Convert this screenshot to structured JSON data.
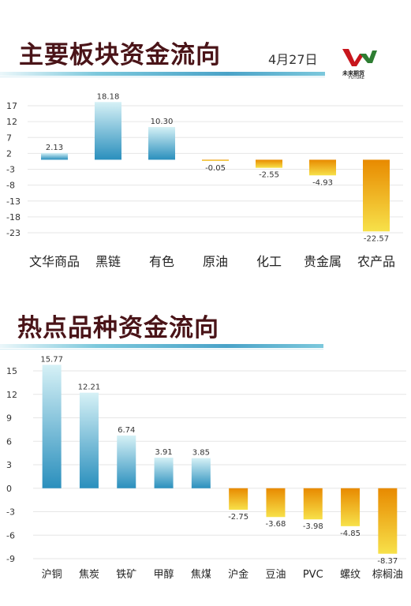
{
  "header1": {
    "title": "主要板块资金流向",
    "date": "4月27日"
  },
  "logo": {
    "name": "未来期货",
    "sub": "FUTURE"
  },
  "header2": {
    "title": "热点品种资金流向"
  },
  "colors": {
    "positive_top": "#d6f1f6",
    "positive_bottom": "#2a8fbd",
    "negative_top": "#e88a00",
    "negative_bottom": "#f7e14a",
    "title": "#4a1418",
    "grid": "#e6e6e6"
  },
  "chart_data": [
    {
      "type": "bar",
      "categories": [
        "文华商品",
        "黑链",
        "有色",
        "原油",
        "化工",
        "贵金属",
        "农产品"
      ],
      "values": [
        2.13,
        18.18,
        10.3,
        -0.05,
        -2.55,
        -4.93,
        -22.57
      ],
      "value_labels": [
        "2.13",
        "18.18",
        "10.30",
        "-0.05",
        "-2.55",
        "-4.93",
        "-22.57"
      ],
      "yticks": [
        "17",
        "12",
        "7",
        "2",
        "-3",
        "-8",
        "-13",
        "-18",
        "-23"
      ],
      "ylim": [
        -23,
        17
      ]
    },
    {
      "type": "bar",
      "categories": [
        "沪铜",
        "焦炭",
        "铁矿",
        "甲醇",
        "焦煤",
        "沪金",
        "豆油",
        "PVC",
        "螺纹",
        "棕榈油"
      ],
      "values": [
        15.77,
        12.21,
        6.74,
        3.91,
        3.85,
        -2.75,
        -3.68,
        -3.98,
        -4.85,
        -8.37
      ],
      "value_labels": [
        "15.77",
        "12.21",
        "6.74",
        "3.91",
        "3.85",
        "-2.75",
        "-3.68",
        "-3.98",
        "-4.85",
        "-8.37"
      ],
      "yticks": [
        "15",
        "12",
        "9",
        "6",
        "3",
        "0",
        "-3",
        "-6",
        "-9"
      ],
      "ylim": [
        -9,
        15
      ]
    }
  ]
}
